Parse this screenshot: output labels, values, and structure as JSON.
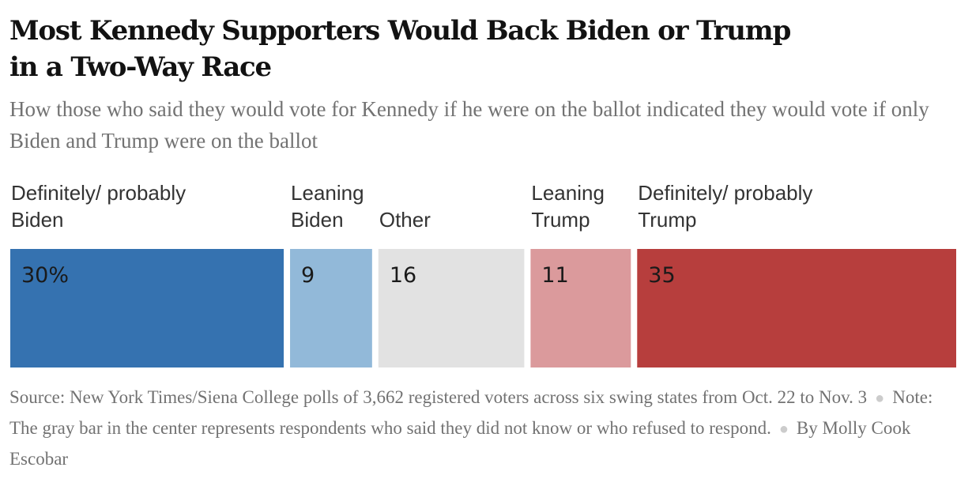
{
  "title": "Most Kennedy Supporters Would Back Biden or Trump in a Two-Way Race",
  "subtitle": "How those who said they would vote for Kennedy if he were on the ballot indicated they would vote if only Biden and Trump were on the ballot",
  "chart_data": {
    "type": "bar",
    "orientation": "horizontal-stacked",
    "categories": [
      [
        "Definitely/ probably",
        "Biden"
      ],
      [
        "Leaning",
        "Biden"
      ],
      [
        "Other"
      ],
      [
        "Leaning",
        "Trump"
      ],
      [
        "Definitely/ probably",
        "Trump"
      ]
    ],
    "values": [
      30,
      9,
      16,
      11,
      35
    ],
    "value_labels": [
      "30%",
      "9",
      "16",
      "11",
      "35"
    ],
    "colors": [
      "#3572b0",
      "#92b9d9",
      "#e2e2e2",
      "#db9a9c",
      "#b73e3d"
    ],
    "xlim": [
      0,
      101
    ],
    "grid": false,
    "legend": "none"
  },
  "footer": {
    "source": "Source: New York Times/Siena College polls of 3,662 registered voters across six swing states from Oct. 22 to Nov. 3",
    "note": "Note: The gray bar in the center represents respondents who said they did not know or who refused to respond.",
    "byline": "By Molly Cook Escobar"
  }
}
